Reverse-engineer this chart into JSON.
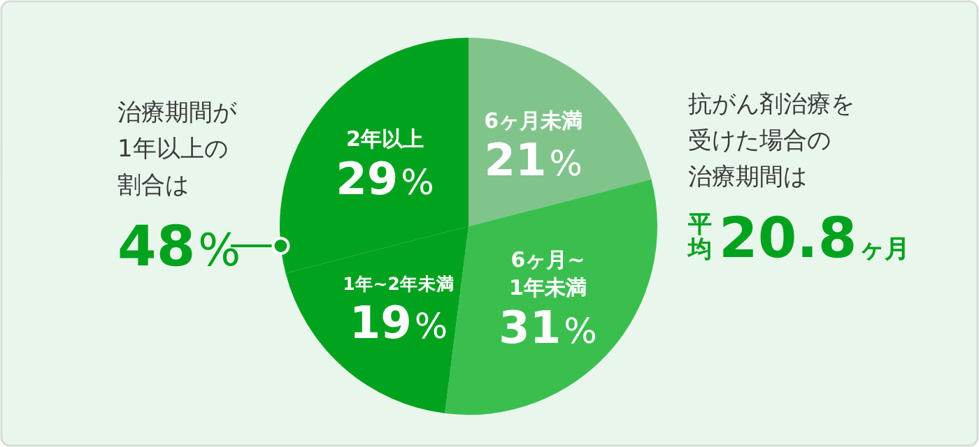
{
  "chart_data": {
    "type": "pie",
    "categories": [
      "6ヶ月未満",
      "6ヶ月~1年未満",
      "1年~2年未満",
      "2年以上"
    ],
    "values": [
      21,
      31,
      19,
      29
    ],
    "colors": [
      "#80c48b",
      "#3abf4f",
      "#00a21e",
      "#00a21e"
    ],
    "value_labels": [
      "21%",
      "31%",
      "19%",
      "29%"
    ],
    "annotations": [
      "治療期間が1年以上の割合は",
      "48%",
      "抗がん剤治療を受けた場合の治療期間は",
      "平均20.8ヶ月"
    ]
  }
}
